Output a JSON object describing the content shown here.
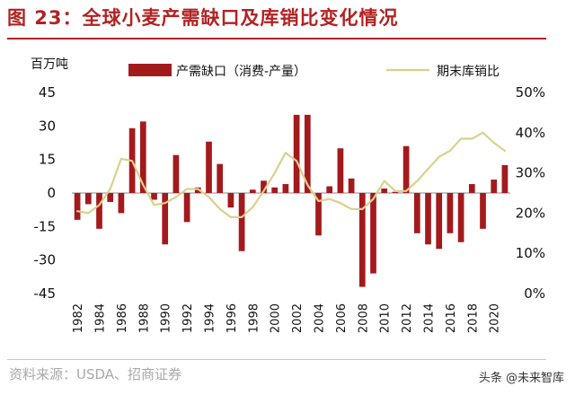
{
  "header": {
    "title": "图 23：全球小麦产需缺口及库销比变化情况"
  },
  "footer": {
    "source": "资料来源：USDA、招商证券",
    "watermark": "头条 @未来智库"
  },
  "colors": {
    "bar": "#a31a1d",
    "line": "#dcd08c",
    "title": "#b22222"
  },
  "chart_data": {
    "type": "bar+line",
    "title": "全球小麦产需缺口及库销比变化情况",
    "ylabel": "百万吨",
    "ylim": [
      -45,
      45
    ],
    "yticks": [
      "45",
      "30",
      "15",
      "0",
      "-15",
      "-30",
      "-45"
    ],
    "y2lim": [
      0,
      50
    ],
    "y2ticks": [
      "50%",
      "40%",
      "30%",
      "20%",
      "10%",
      "0%"
    ],
    "x": [
      1982,
      1983,
      1984,
      1985,
      1986,
      1987,
      1988,
      1989,
      1990,
      1991,
      1992,
      1993,
      1994,
      1995,
      1996,
      1997,
      1998,
      1999,
      2000,
      2001,
      2002,
      2003,
      2004,
      2005,
      2006,
      2007,
      2008,
      2009,
      2010,
      2011,
      2012,
      2013,
      2014,
      2015,
      2016,
      2017,
      2018,
      2019,
      2020,
      2021
    ],
    "xticklabels": [
      "1982",
      "1984",
      "1986",
      "1988",
      "1990",
      "1992",
      "1994",
      "1996",
      "1998",
      "2000",
      "2002",
      "2004",
      "2006",
      "2008",
      "2010",
      "2012",
      "2014",
      "2016",
      "2018",
      "2020"
    ],
    "series": [
      {
        "name": "产需缺口（消费-产量）",
        "type": "bar",
        "axis": "left",
        "values": [
          -12,
          -5,
          -16,
          -4,
          -9,
          29,
          32,
          -3,
          -23,
          17,
          -13,
          2.5,
          23,
          13,
          -6.5,
          -26,
          1.5,
          5.5,
          2.5,
          4,
          35,
          35,
          -19,
          3,
          20,
          6.5,
          -42,
          -36,
          2,
          0.5,
          21,
          -18,
          -23,
          -25,
          -18,
          -22,
          4,
          -16,
          6,
          12.5
        ]
      },
      {
        "name": "期末库销比",
        "type": "line",
        "axis": "right",
        "values": [
          20.5,
          20,
          22,
          26,
          33.5,
          33,
          27,
          22,
          22.5,
          24,
          26,
          26,
          24,
          21,
          19,
          19,
          21.5,
          25.5,
          30,
          35,
          33,
          27,
          23,
          23.5,
          22.5,
          21,
          21,
          23.5,
          28,
          25.5,
          25.5,
          28,
          31,
          34,
          35.5,
          38.5,
          38.5,
          40,
          37.5,
          35.5
        ]
      }
    ],
    "legend_position": "top"
  }
}
